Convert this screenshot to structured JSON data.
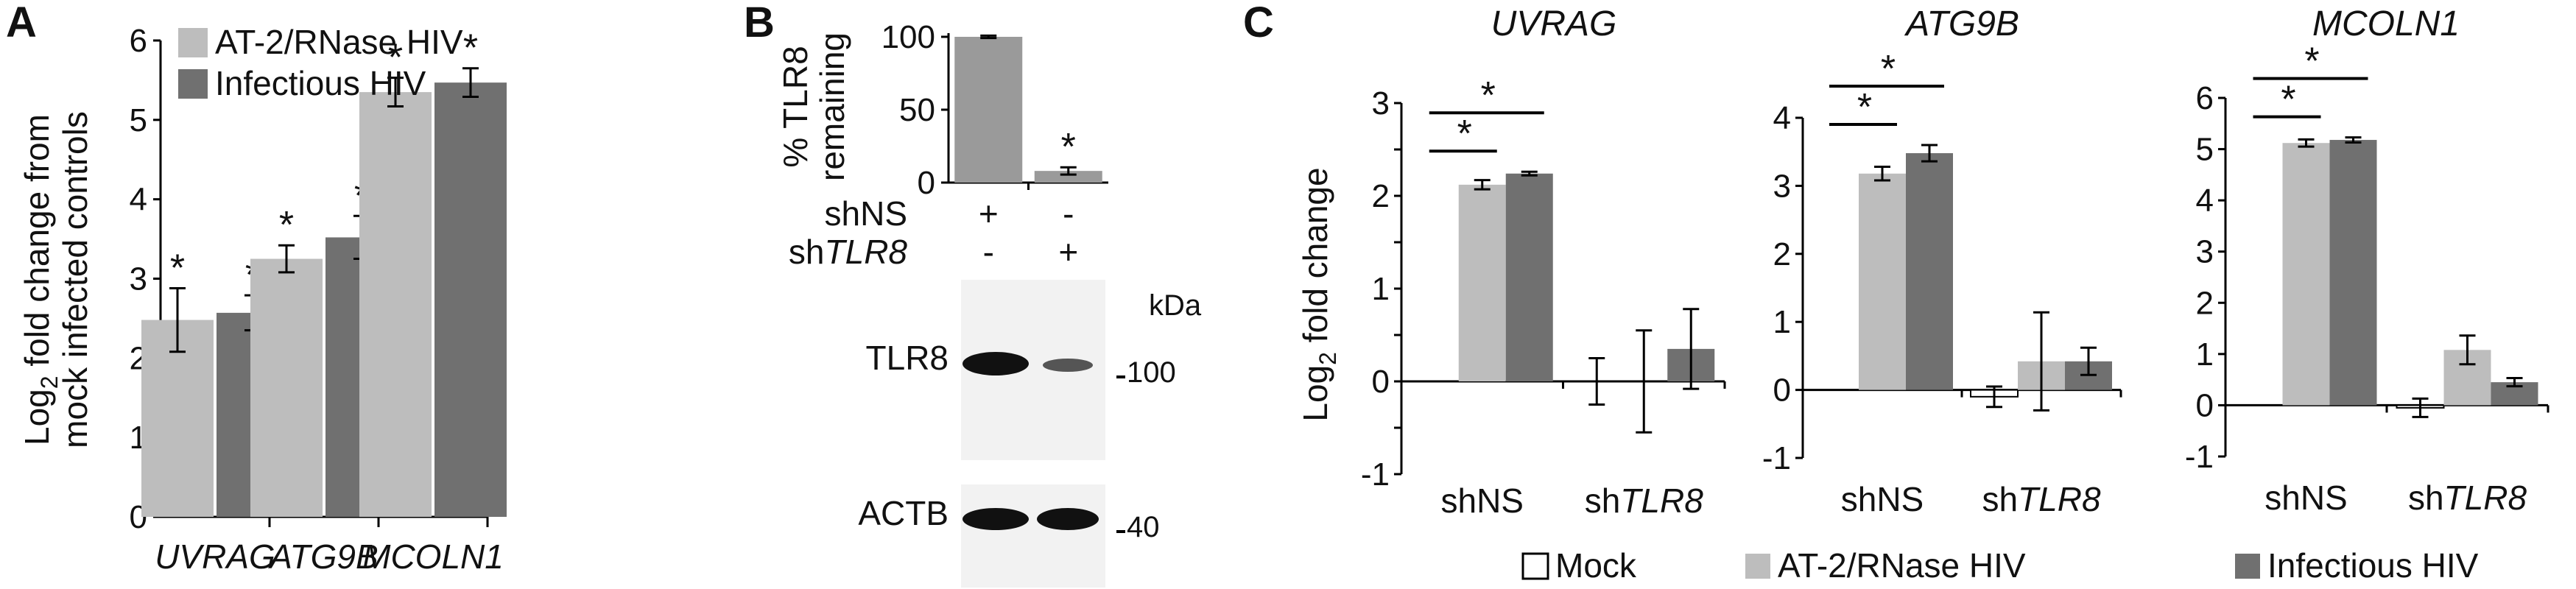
{
  "colors": {
    "mock": "#ffffff",
    "at2": "#bdbdbd",
    "inf": "#707070",
    "b_bar": "#9a9a9a",
    "axis": "#000000"
  },
  "panel_labels": {
    "a": "A",
    "b": "B",
    "c": "C"
  },
  "chart_data": [
    {
      "panel": "A",
      "type": "bar",
      "ylabel": "Log₂ fold change from mock infected controls",
      "ylabel_lines": [
        "Log",
        "2",
        " fold change from",
        "mock infected controls"
      ],
      "ylim": [
        0,
        6
      ],
      "yticks": [
        0,
        1,
        2,
        3,
        4,
        5,
        6
      ],
      "categories": [
        "UVRAG",
        "ATG9B",
        "MCOLN1"
      ],
      "series": [
        {
          "name": "AT-2/RNase HIV",
          "values": [
            2.48,
            3.25,
            5.35
          ],
          "errors": [
            0.4,
            0.17,
            0.18
          ]
        },
        {
          "name": "Infectious HIV",
          "values": [
            2.57,
            3.52,
            5.47
          ],
          "errors": [
            0.22,
            0.27,
            0.18
          ]
        }
      ],
      "significance": [
        "*",
        "*",
        "*",
        "*",
        "*",
        "*"
      ],
      "legend": [
        "AT-2/RNase HIV",
        "Infectious HIV"
      ]
    },
    {
      "panel": "B",
      "type": "bar",
      "ylabel": "% TLR8 remaining",
      "ylabel_lines": [
        "% TLR8",
        "remaining"
      ],
      "ylim": [
        0,
        100
      ],
      "yticks": [
        0,
        50,
        100
      ],
      "categories": [
        "shNS",
        "shTLR8"
      ],
      "values": [
        100,
        8
      ],
      "errors": [
        0.8,
        2.5
      ],
      "significance": [
        "",
        "*"
      ],
      "row_labels": [
        "shNS",
        "shTLR8"
      ],
      "row_label_parts": [
        {
          "a": "shNS",
          "b": ""
        },
        {
          "a": "sh",
          "b": "TLR8"
        }
      ],
      "row_marks": [
        [
          "+",
          "-"
        ],
        [
          "-",
          "+"
        ]
      ],
      "blot": {
        "unit": "kDa",
        "bands": [
          {
            "label": "TLR8",
            "marker": "100"
          },
          {
            "label": "ACTB",
            "marker": "40"
          }
        ]
      }
    },
    {
      "panel": "C",
      "type": "bar",
      "gene": "UVRAG",
      "ylabel": "Log₂ fold change",
      "ylabel_parts": [
        "Log",
        "2",
        " fold change"
      ],
      "ylim": [
        -1,
        3
      ],
      "yticks": [
        -1,
        -0.5,
        0,
        0.5,
        1,
        1.5,
        2,
        2.5,
        3
      ],
      "categories": [
        "shNS",
        "shTLR8"
      ],
      "series": [
        {
          "name": "Mock",
          "values": [
            0,
            0
          ],
          "errors": [
            0,
            0.25
          ]
        },
        {
          "name": "AT-2/RNase HIV",
          "values": [
            2.12,
            0
          ],
          "errors": [
            0.05,
            0.55
          ]
        },
        {
          "name": "Infectious HIV",
          "values": [
            2.24,
            0.35
          ],
          "errors": [
            0.02,
            0.43
          ]
        }
      ]
    },
    {
      "panel": "C",
      "type": "bar",
      "gene": "ATG9B",
      "ylim": [
        -1,
        4
      ],
      "yticks": [
        -1,
        0,
        1,
        2,
        3,
        4
      ],
      "categories": [
        "shNS",
        "shTLR8"
      ],
      "series": [
        {
          "name": "Mock",
          "values": [
            0,
            -0.1
          ],
          "errors": [
            0,
            0.15
          ]
        },
        {
          "name": "AT-2/RNase HIV",
          "values": [
            3.18,
            0.42
          ],
          "errors": [
            0.1,
            0.72
          ]
        },
        {
          "name": "Infectious HIV",
          "values": [
            3.48,
            0.42
          ],
          "errors": [
            0.12,
            0.2
          ]
        }
      ]
    },
    {
      "panel": "C",
      "type": "bar",
      "gene": "MCOLN1",
      "ylim": [
        -1,
        6
      ],
      "yticks": [
        -1,
        0,
        1,
        2,
        3,
        4,
        5,
        6
      ],
      "categories": [
        "shNS",
        "shTLR8"
      ],
      "series": [
        {
          "name": "Mock",
          "values": [
            0,
            -0.05
          ],
          "errors": [
            0,
            0.18
          ]
        },
        {
          "name": "AT-2/RNase HIV",
          "values": [
            5.12,
            1.08
          ],
          "errors": [
            0.07,
            0.28
          ]
        },
        {
          "name": "Infectious HIV",
          "values": [
            5.18,
            0.45
          ],
          "errors": [
            0.05,
            0.08
          ]
        }
      ]
    }
  ],
  "shared_legend": [
    "Mock",
    "AT-2/RNase HIV",
    "Infectious HIV"
  ],
  "shared_xlabels": [
    {
      "a": "shNS",
      "b": ""
    },
    {
      "a": "sh",
      "b": "TLR8"
    }
  ]
}
